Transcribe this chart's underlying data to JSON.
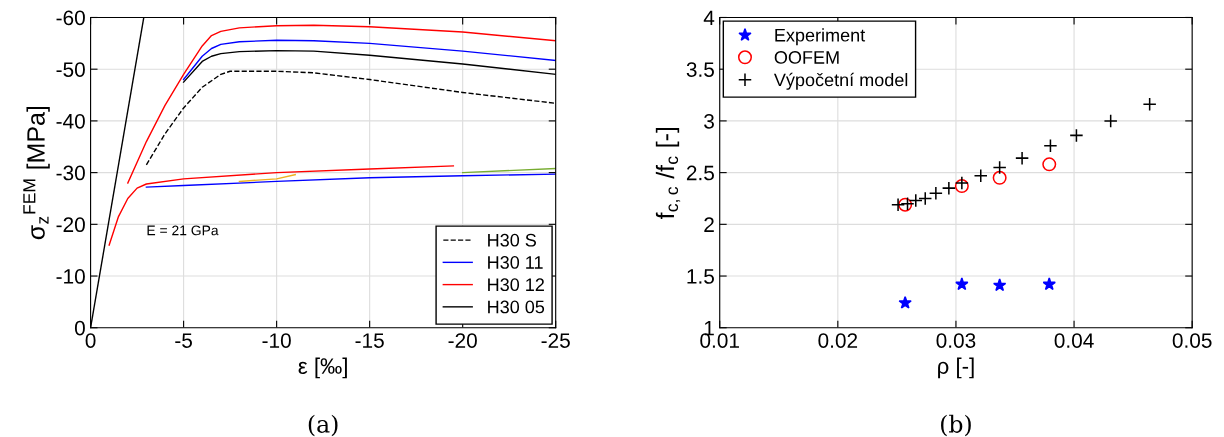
{
  "chart_data": [
    {
      "type": "line",
      "xlabel": "ε [‰]",
      "ylabel": "σ$_{z}$$^{FEM}$ [MPa]",
      "xlim": [
        0,
        -25
      ],
      "ylim": [
        0,
        -60
      ],
      "xticks": [
        0,
        -5,
        -10,
        -15,
        -20,
        -25
      ],
      "yticks": [
        0,
        -10,
        -20,
        -30,
        -40,
        -50,
        -60
      ],
      "grid": true,
      "legend": "bottom right",
      "annotations": [
        "E = 21 GPa",
        "(a)"
      ],
      "series": [
        {
          "color": "#0000ff",
          "x": [
            -3,
            -5,
            -10,
            -15,
            -20,
            -25
          ],
          "values": [
            -27.2,
            -27.5,
            -28.3,
            -29,
            -29.4,
            -29.7
          ]
        },
        {
          "color": "#77ac30",
          "x": [
            -20,
            -25
          ],
          "values": [
            -30,
            -30.8
          ]
        },
        {
          "color": "#edb120",
          "x": [
            -8,
            -10,
            -11
          ],
          "values": [
            -28.3,
            -28.8,
            -29.6
          ]
        },
        {
          "color": "#ff0000",
          "x": [
            -1,
            -1.5,
            -2,
            -2.5,
            -3,
            -5,
            -10,
            -15,
            -19.5
          ],
          "values": [
            -16,
            -21.5,
            -25,
            -27,
            -27.8,
            -28.8,
            -30,
            -30.7,
            -31.3
          ]
        },
        {
          "color": "#000000",
          "x": [
            0,
            -2.86
          ],
          "values": [
            0,
            -60
          ]
        },
        {
          "name": "H30 S",
          "color": "#000000",
          "line_style": "dashed",
          "x": [
            -3,
            -4,
            -5,
            -6,
            -7,
            -7.5,
            -10,
            -12,
            -15,
            -20,
            -25
          ],
          "values": [
            -31.5,
            -37.5,
            -42.5,
            -46.5,
            -49,
            -49.6,
            -49.6,
            -49.3,
            -48,
            -45.5,
            -43.4
          ]
        },
        {
          "name": "H30 11",
          "color": "#0000ff",
          "x": [
            -5,
            -6,
            -6.5,
            -7,
            -8,
            -10,
            -12,
            -15,
            -20,
            -25
          ],
          "values": [
            -48,
            -52.5,
            -54,
            -54.8,
            -55.3,
            -55.6,
            -55.5,
            -55,
            -53.5,
            -51.7
          ]
        },
        {
          "name": "H30 12",
          "color": "#ff0000",
          "x": [
            -2,
            -3,
            -4,
            -5,
            -6,
            -6.5,
            -7,
            -8,
            -10,
            -12,
            -15,
            -20,
            -25
          ],
          "values": [
            -28,
            -36,
            -43,
            -49,
            -54.5,
            -56.5,
            -57.3,
            -58,
            -58.4,
            -58.5,
            -58.2,
            -57.2,
            -55.5
          ]
        },
        {
          "name": "H30 05",
          "color": "#000000",
          "x": [
            -5,
            -6,
            -6.5,
            -7,
            -8,
            -10,
            -12,
            -15,
            -20,
            -25
          ],
          "values": [
            -47.5,
            -51.5,
            -52.5,
            -53,
            -53.4,
            -53.6,
            -53.5,
            -52.7,
            -51,
            -49
          ]
        }
      ]
    },
    {
      "type": "scatter",
      "xlabel": "ρ [-]",
      "ylabel": "f$_{c,c}$ /f$_{c}$ [-]",
      "xlim": [
        0.01,
        0.05
      ],
      "ylim": [
        1,
        4
      ],
      "xticks": [
        0.01,
        0.02,
        0.03,
        0.04,
        0.05
      ],
      "yticks": [
        1,
        1.5,
        2,
        2.5,
        3,
        3.5,
        4
      ],
      "grid": true,
      "legend": "top left",
      "annotations": [
        "(b)"
      ],
      "series": [
        {
          "name": "Experiment",
          "color": "#0000ff",
          "marker": "star",
          "x": [
            0.0257,
            0.0305,
            0.0337,
            0.0379
          ],
          "values": [
            1.24,
            1.42,
            1.41,
            1.42
          ]
        },
        {
          "name": "OOFEM",
          "color": "#ff0000",
          "marker": "circle",
          "x": [
            0.0257,
            0.0305,
            0.0337,
            0.0379
          ],
          "values": [
            2.19,
            2.37,
            2.45,
            2.58
          ]
        },
        {
          "name": "Výpočetní model",
          "color": "#000000",
          "marker": "cross",
          "x": [
            0.0251,
            0.0259,
            0.0266,
            0.0274,
            0.0283,
            0.0294,
            0.0305,
            0.0321,
            0.0337,
            0.0356,
            0.038,
            0.0402,
            0.0431,
            0.0464
          ],
          "values": [
            2.19,
            2.2,
            2.23,
            2.25,
            2.3,
            2.35,
            2.4,
            2.47,
            2.55,
            2.64,
            2.76,
            2.86,
            3.0,
            3.16
          ]
        }
      ]
    }
  ]
}
